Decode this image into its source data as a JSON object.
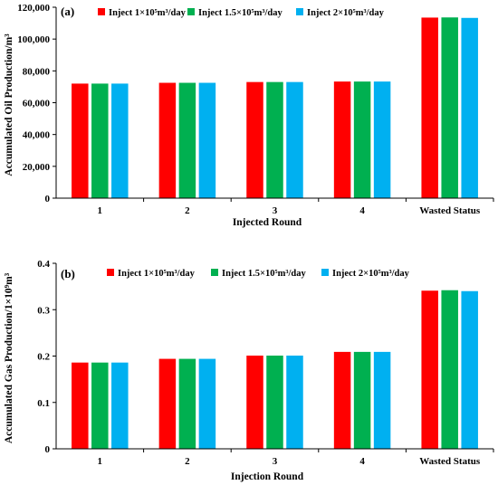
{
  "colors": {
    "series1": "#ff0000",
    "series2": "#00b050",
    "series3": "#00b0f0",
    "axis": "#000000"
  },
  "chart_data": [
    {
      "type": "bar",
      "panel_label": "(a)",
      "categories": [
        "1",
        "2",
        "3",
        "4",
        "Wasted Status"
      ],
      "xlabel": "Injected Round",
      "ylabel": "Accumulated Oil Production/m³",
      "ylim": [
        0,
        120000
      ],
      "yticks": [
        0,
        20000,
        40000,
        60000,
        80000,
        100000,
        120000
      ],
      "ytick_labels": [
        "0",
        "20,000",
        "40,000",
        "60,000",
        "80,000",
        "100,000",
        "120,000"
      ],
      "legend_position": "top",
      "grid": false,
      "series": [
        {
          "name": "Inject 1×10⁵m³/day",
          "values": [
            72000,
            72500,
            73000,
            73300,
            113500
          ]
        },
        {
          "name": "Inject 1.5×10⁵m³/day",
          "values": [
            72000,
            72500,
            73000,
            73300,
            113600
          ]
        },
        {
          "name": "Inject 2×10⁵m³/day",
          "values": [
            72000,
            72500,
            73000,
            73300,
            113300
          ]
        }
      ]
    },
    {
      "type": "bar",
      "panel_label": "(b)",
      "categories": [
        "1",
        "2",
        "3",
        "4",
        "Wasted Status"
      ],
      "xlabel": "Injection Round",
      "ylabel": "Accumulated Gas Production/1×10⁹m³",
      "ylim": [
        0,
        0.4
      ],
      "yticks": [
        0,
        0.1,
        0.2,
        0.3,
        0.4
      ],
      "ytick_labels": [
        "0",
        "0.1",
        "0.2",
        "0.3",
        "0.4"
      ],
      "legend_position": "top",
      "grid": false,
      "series": [
        {
          "name": "Inject 1×10⁵m³/day",
          "values": [
            0.186,
            0.194,
            0.201,
            0.209,
            0.341
          ]
        },
        {
          "name": "Inject 1.5×10⁵m³/day",
          "values": [
            0.186,
            0.194,
            0.201,
            0.209,
            0.342
          ]
        },
        {
          "name": "Inject 2×10⁵m³/day",
          "values": [
            0.186,
            0.194,
            0.201,
            0.209,
            0.34
          ]
        }
      ]
    }
  ]
}
